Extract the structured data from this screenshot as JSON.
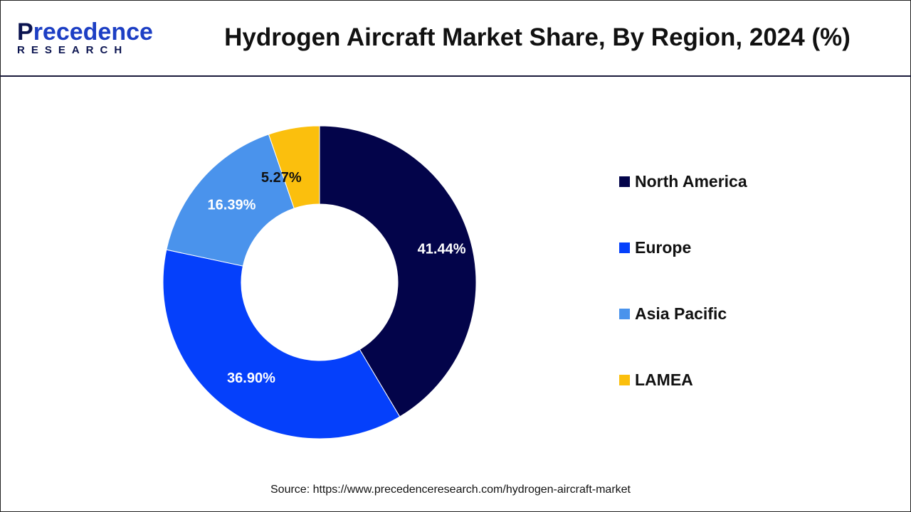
{
  "header": {
    "logo_top": "recedence",
    "logo_p": "P",
    "logo_bottom": "RESEARCH",
    "title": "Hydrogen Aircraft Market Share, By Region, 2024 (%)"
  },
  "chart_data": {
    "type": "pie",
    "donut": true,
    "title": "Hydrogen Aircraft Market Share, By Region, 2024 (%)",
    "categories": [
      "North America",
      "Europe",
      "Asia Pacific",
      "LAMEA"
    ],
    "values": [
      41.44,
      36.9,
      16.39,
      5.27
    ],
    "labels": [
      "41.44%",
      "36.90%",
      "16.39%",
      "5.27%"
    ],
    "colors": [
      "#03044a",
      "#0540fb",
      "#4a93ec",
      "#fbbf0d"
    ],
    "legend_placement": "right"
  },
  "source": "Source: https://www.precedenceresearch.com/hydrogen-aircraft-market"
}
